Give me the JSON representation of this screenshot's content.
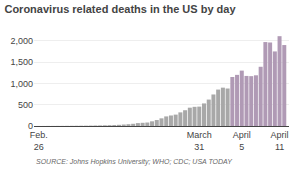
{
  "chart_data": {
    "type": "bar",
    "title": "Coronavirus related deaths in the US by day",
    "annotations": [
      "SOURCE: Johns Hopkins University; WHO; CDC; USA TODAY"
    ],
    "categories": [
      "Feb.\n26",
      null,
      null,
      null,
      null,
      null,
      null,
      null,
      null,
      null,
      null,
      null,
      null,
      null,
      null,
      null,
      null,
      null,
      null,
      null,
      null,
      null,
      null,
      null,
      null,
      null,
      null,
      null,
      null,
      null,
      null,
      null,
      null,
      null,
      "March\n31",
      null,
      null,
      null,
      null,
      null,
      null,
      null,
      null,
      "April\n5",
      null,
      null,
      null,
      null,
      null,
      null,
      null,
      "April\n11",
      null
    ],
    "values": [
      1,
      1,
      2,
      2,
      3,
      3,
      4,
      5,
      6,
      7,
      8,
      10,
      12,
      14,
      17,
      20,
      24,
      28,
      35,
      42,
      52,
      68,
      75,
      82,
      110,
      140,
      180,
      225,
      247,
      267,
      320,
      370,
      430,
      450,
      455,
      530,
      620,
      740,
      855,
      900,
      880,
      1150,
      1200,
      1300,
      1175,
      1170,
      1190,
      1390,
      1970,
      1960,
      1750,
      2108,
      1900
    ],
    "colors": [
      "#a8a8a8",
      "#a8a8a8",
      "#a8a8a8",
      "#a8a8a8",
      "#a8a8a8",
      "#a8a8a8",
      "#a8a8a8",
      "#a8a8a8",
      "#a8a8a8",
      "#a8a8a8",
      "#a8a8a8",
      "#a8a8a8",
      "#a8a8a8",
      "#a8a8a8",
      "#a8a8a8",
      "#a8a8a8",
      "#a8a8a8",
      "#a8a8a8",
      "#a8a8a8",
      "#a8a8a8",
      "#a8a8a8",
      "#a8a8a8",
      "#a8a8a8",
      "#a8a8a8",
      "#a8a8a8",
      "#a8a8a8",
      "#a8a8a8",
      "#a8a8a8",
      "#a8a8a8",
      "#a8a8a8",
      "#a8a8a8",
      "#a8a8a8",
      "#a8a8a8",
      "#a8a8a8",
      "#a8a8a8",
      "#a8a8a8",
      "#a8a8a8",
      "#a8a8a8",
      "#a8a8a8",
      "#a8a8a8",
      "#a8a8a8",
      "#b09ab5",
      "#b09ab5",
      "#b09ab5",
      "#b09ab5",
      "#b09ab5",
      "#b09ab5",
      "#b09ab5",
      "#b09ab5",
      "#b09ab5",
      "#b09ab5",
      "#b09ab5",
      "#b09ab5"
    ],
    "ylim": [
      0,
      2300
    ],
    "yticks": [
      0,
      500,
      {
        "value": 1000,
        "label": "1,000"
      },
      {
        "value": 1500,
        "label": "1,500"
      },
      {
        "value": 2000,
        "label": "2,000"
      }
    ],
    "grid": true
  }
}
